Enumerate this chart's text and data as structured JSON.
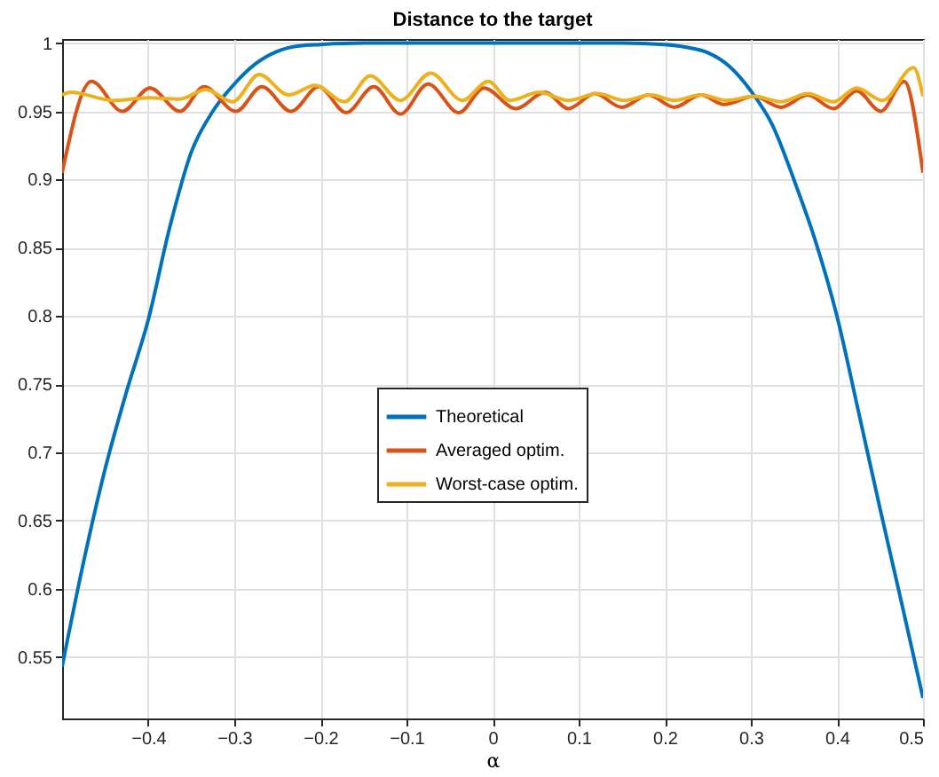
{
  "chart_data": {
    "type": "line",
    "title": "Distance to the target",
    "xlabel": "α",
    "xlim": [
      -0.5,
      0.5
    ],
    "xticks": [
      -0.4,
      -0.3,
      -0.2,
      -0.1,
      0,
      0.1,
      0.2,
      0.3,
      0.4,
      0.5
    ],
    "ylim": [
      0.505,
      1.003
    ],
    "yticks": [
      0.55,
      0.6,
      0.65,
      0.7,
      0.75,
      0.8,
      0.85,
      0.9,
      0.95,
      1
    ],
    "grid": true,
    "legend": "center",
    "line_style": "solid",
    "marker": "none",
    "series": [
      {
        "name": "Theoretical",
        "color": "#0072bd",
        "x": [
          -0.5,
          -0.475,
          -0.45,
          -0.425,
          -0.4,
          -0.375,
          -0.35,
          -0.325,
          -0.3,
          -0.275,
          -0.25,
          -0.225,
          -0.2,
          -0.15,
          -0.1,
          0,
          0.1,
          0.15,
          0.2,
          0.225,
          0.25,
          0.275,
          0.3,
          0.325,
          0.35,
          0.375,
          0.4,
          0.425,
          0.45,
          0.475,
          0.5
        ],
        "values": [
          0.543,
          0.62,
          0.688,
          0.745,
          0.797,
          0.865,
          0.92,
          0.95,
          0.97,
          0.985,
          0.994,
          0.998,
          0.999,
          1,
          1,
          1,
          1,
          1,
          0.999,
          0.997,
          0.993,
          0.983,
          0.965,
          0.94,
          0.9,
          0.855,
          0.8,
          0.73,
          0.659,
          0.59,
          0.52
        ]
      },
      {
        "name": "Averaged optim.",
        "color": "#d95319",
        "x": [
          -0.5,
          -0.466,
          -0.43,
          -0.398,
          -0.363,
          -0.335,
          -0.298,
          -0.268,
          -0.234,
          -0.202,
          -0.17,
          -0.138,
          -0.107,
          -0.075,
          -0.039,
          -0.01,
          0.027,
          0.061,
          0.088,
          0.119,
          0.15,
          0.181,
          0.211,
          0.242,
          0.269,
          0.304,
          0.335,
          0.366,
          0.396,
          0.423,
          0.451,
          0.478,
          0.5
        ],
        "values": [
          0.905,
          0.972,
          0.95,
          0.967,
          0.95,
          0.968,
          0.95,
          0.968,
          0.95,
          0.968,
          0.949,
          0.968,
          0.948,
          0.97,
          0.949,
          0.967,
          0.952,
          0.964,
          0.952,
          0.963,
          0.953,
          0.962,
          0.953,
          0.962,
          0.955,
          0.961,
          0.953,
          0.962,
          0.952,
          0.965,
          0.95,
          0.972,
          0.905
        ]
      },
      {
        "name": "Worst-case optim.",
        "color": "#edb120",
        "x": [
          -0.5,
          -0.49,
          -0.44,
          -0.4,
          -0.363,
          -0.333,
          -0.302,
          -0.271,
          -0.237,
          -0.206,
          -0.172,
          -0.142,
          -0.107,
          -0.072,
          -0.035,
          -0.005,
          0.02,
          0.054,
          0.088,
          0.122,
          0.153,
          0.184,
          0.211,
          0.242,
          0.272,
          0.304,
          0.335,
          0.366,
          0.396,
          0.423,
          0.453,
          0.489,
          0.5
        ],
        "values": [
          0.962,
          0.964,
          0.958,
          0.96,
          0.959,
          0.966,
          0.957,
          0.977,
          0.962,
          0.969,
          0.957,
          0.976,
          0.958,
          0.978,
          0.958,
          0.972,
          0.958,
          0.964,
          0.958,
          0.963,
          0.958,
          0.962,
          0.958,
          0.962,
          0.958,
          0.961,
          0.957,
          0.963,
          0.957,
          0.967,
          0.958,
          0.982,
          0.961
        ]
      }
    ]
  }
}
